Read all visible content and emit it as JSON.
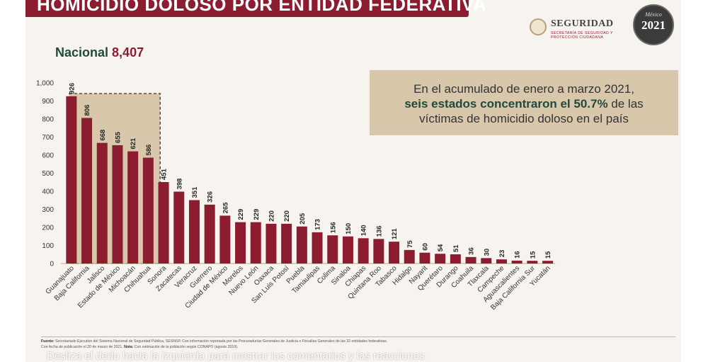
{
  "header": {
    "title": "HOMICIDIO DOLOSO POR ENTIDAD FEDERATIVA"
  },
  "nacional": {
    "label": "Nacional",
    "value": "8,407"
  },
  "callout": {
    "line1": "En el acumulado de enero a marzo 2021,",
    "line2_em": "seis estados concentraron el 50.7%",
    "line2_rest": " de las",
    "line3": "víctimas de homicidio doloso en el país"
  },
  "logos": {
    "seguridad_word": "SEGURIDAD",
    "seguridad_sub": "SECRETARÍA DE SEGURIDAD Y PROTECCIÓN CIUDADANA",
    "mexico_text": "México",
    "year_text": "2021"
  },
  "colors": {
    "bar": "#8c1d30",
    "highlight_box": "#d9c7ac",
    "highlight_border": "#333333",
    "green": "#1f4a3c"
  },
  "chart_data": {
    "type": "bar",
    "title": "",
    "xlabel": "",
    "ylabel": "",
    "ylim": [
      0,
      1000
    ],
    "yticks": [
      "0",
      "100",
      "200",
      "300",
      "400",
      "500",
      "600",
      "700",
      "800",
      "900",
      "1,000"
    ],
    "ytick_values": [
      0,
      100,
      200,
      300,
      400,
      500,
      600,
      700,
      800,
      900,
      1000
    ],
    "grid": false,
    "highlight_first_n": 6,
    "categories": [
      "Guanajuato",
      "Baja California",
      "Jalisco",
      "Estado de México",
      "Michoacán",
      "Chihuahua",
      "Sonora",
      "Zacatecas",
      "Veracruz",
      "Guerrero",
      "Ciudad de México",
      "Morelos",
      "Nuevo León",
      "Oaxaca",
      "San Luis Potosí",
      "Puebla",
      "Tamaulipas",
      "Colima",
      "Sinaloa",
      "Chiapas",
      "Quintana Roo",
      "Tabasco",
      "Hidalgo",
      "Nayarit",
      "Querétaro",
      "Durango",
      "Coahuila",
      "Tlaxcala",
      "Campeche",
      "Aguascalientes",
      "Baja California Sur",
      "Yucatán"
    ],
    "values": [
      926,
      806,
      668,
      655,
      621,
      586,
      451,
      398,
      351,
      326,
      265,
      229,
      229,
      220,
      220,
      205,
      173,
      156,
      150,
      140,
      136,
      121,
      75,
      60,
      54,
      51,
      36,
      30,
      23,
      16,
      15,
      15
    ],
    "value_labels": [
      "926",
      "806",
      "668",
      "655",
      "621",
      "586",
      "451",
      "398",
      "351",
      "326",
      "265",
      "229",
      "229",
      "220",
      "220",
      "205",
      "173",
      "156",
      "150",
      "140",
      "136",
      "121",
      "75",
      "60",
      "54",
      "51",
      "36",
      "30",
      "23",
      "16",
      "15",
      "15"
    ]
  },
  "footer": {
    "fuente_label": "Fuente:",
    "fuente_text": " Secretariado Ejecutivo del Sistema Nacional de Seguridad Pública, SESNSP. Con información reportada por las Procuradurías Generales de Justicia o Fiscalías Generales de las 32 entidades federativas.",
    "line2_a": "Con fecha de publicación el 20 de marzo de 2021. ",
    "nota_label": "Nota:",
    "nota_text": " Con estimación de la población según CONAPO (agosto 2019)."
  },
  "overlay": {
    "text": "Desliza el dedo hacia la izquierda para mostrar los comentarios y las reacciones"
  }
}
